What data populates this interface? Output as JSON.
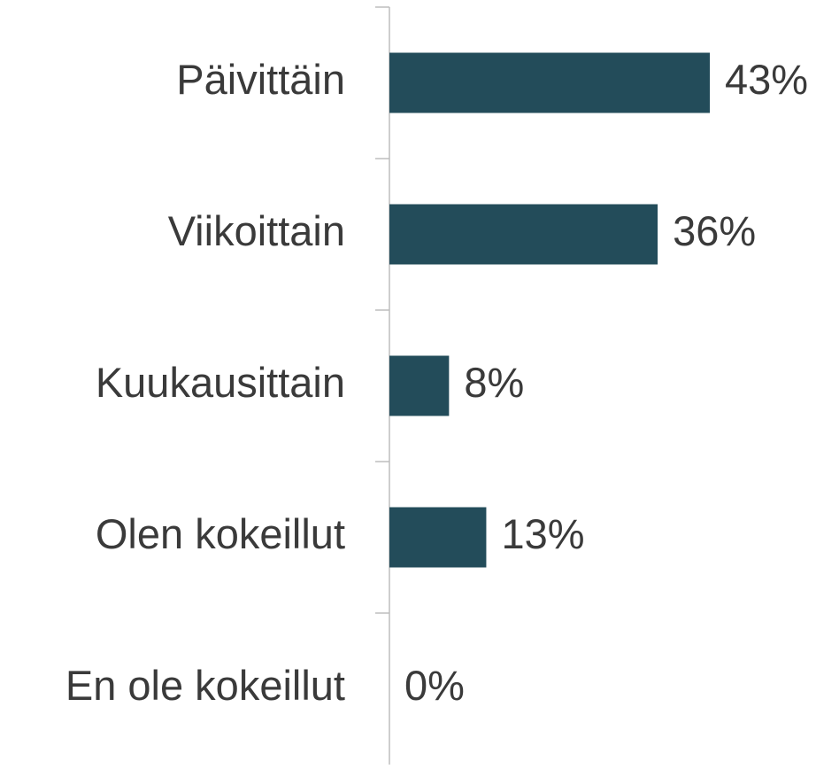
{
  "chart_data": {
    "type": "bar",
    "orientation": "horizontal",
    "categories": [
      "Päivittäin",
      "Viikoittain",
      "Kuukausittain",
      "Olen kokeillut",
      "En ole kokeillut"
    ],
    "values": [
      43,
      36,
      8,
      13,
      0
    ],
    "value_labels": [
      "43%",
      "36%",
      "8%",
      "13%",
      "0%"
    ],
    "color": "#234c5a"
  }
}
